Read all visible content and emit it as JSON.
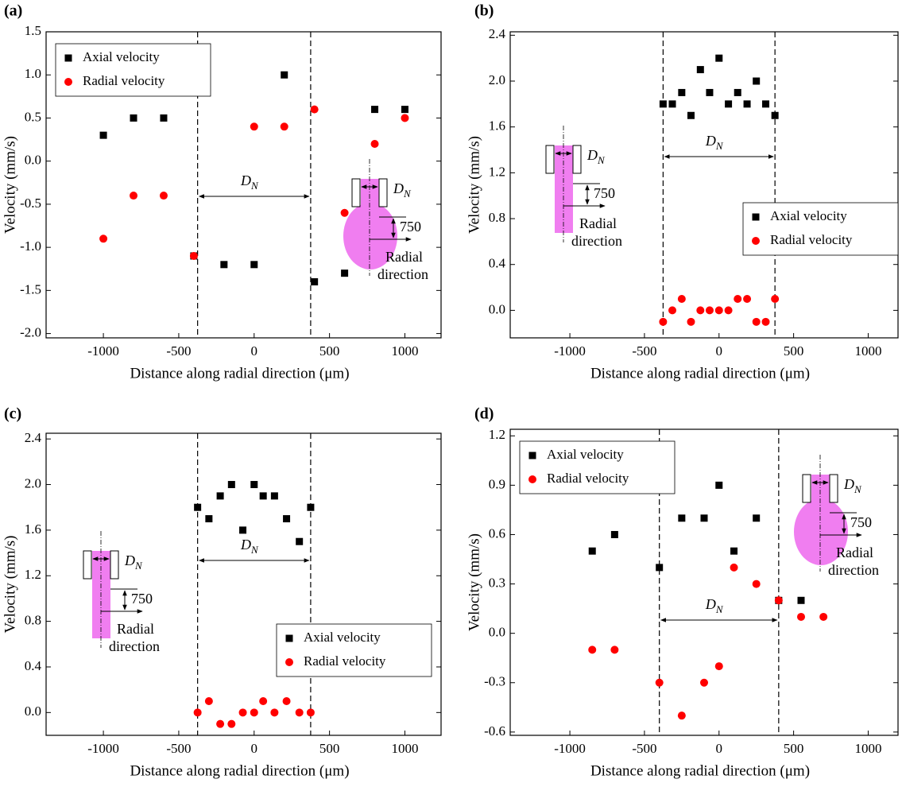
{
  "chart_data": [
    {
      "type": "scatter",
      "panel_label": "(a)",
      "x_label": "Distance along radial direction (μm)",
      "y_label": "Velocity (mm/s)",
      "xlim": [
        -1380,
        1240
      ],
      "xticks": [
        -1000,
        -500,
        0,
        500,
        1000
      ],
      "ylim": [
        -2.05,
        1.5
      ],
      "yticks": [
        1.5,
        {
          "value": 1,
          "label": "1.0"
        },
        0.5,
        {
          "value": 0,
          "label": "0.0"
        },
        -0.5,
        {
          "value": -1,
          "label": "-1.0"
        },
        -1.5,
        {
          "value": -2,
          "label": "-2.0"
        }
      ],
      "legend": "upper left",
      "dashed_lines": [
        -375,
        375
      ],
      "dn_symbol": "D",
      "dn_subscript": "N",
      "inset_size": "750",
      "inset_text": [
        "Radial",
        "direction"
      ],
      "series": [
        {
          "name": "Axial velocity",
          "color": "#000000",
          "marker": "square",
          "x": [
            -1000,
            -800,
            -600,
            -400,
            -200,
            0,
            200,
            400,
            600,
            800,
            1000
          ],
          "values": [
            0.3,
            0.5,
            0.5,
            -1.1,
            -1.2,
            -1.2,
            1.0,
            -1.4,
            -1.3,
            0.6,
            0.6
          ]
        },
        {
          "name": "Radial velocity",
          "color": "#ff0000",
          "marker": "circle",
          "x": [
            -1000,
            -800,
            -600,
            -400,
            0,
            200,
            400,
            600,
            800,
            1000
          ],
          "values": [
            -0.9,
            -0.4,
            -0.4,
            -1.1,
            0.4,
            0.4,
            0.6,
            -0.6,
            0.2,
            0.5
          ]
        }
      ]
    },
    {
      "type": "scatter",
      "panel_label": "(b)",
      "x_label": "Distance along radial direction (μm)",
      "y_label": "Velocity (mm/s)",
      "xlim": [
        -1400,
        1200
      ],
      "xticks": [
        -1000,
        -500,
        0,
        500,
        1000
      ],
      "ylim": [
        -0.24,
        2.43
      ],
      "yticks": [
        {
          "value": 0,
          "label": "0.0"
        },
        0.4,
        0.8,
        1.2,
        1.6,
        {
          "value": 2,
          "label": "2.0"
        },
        2.4
      ],
      "legend": "center right",
      "dashed_lines": [
        -375,
        375
      ],
      "dn_symbol": "D",
      "dn_subscript": "N",
      "inset_size": "750",
      "inset_text": [
        "Radial",
        "direction"
      ],
      "series": [
        {
          "name": "Axial velocity",
          "color": "#000000",
          "marker": "square",
          "x": [
            -375,
            -313,
            -250,
            -188,
            -125,
            -63,
            0,
            63,
            125,
            188,
            250,
            313,
            375
          ],
          "values": [
            1.8,
            1.8,
            1.9,
            1.7,
            2.1,
            1.9,
            2.2,
            1.8,
            1.9,
            1.8,
            2.0,
            1.8,
            1.7
          ]
        },
        {
          "name": "Radial velocity",
          "color": "#ff0000",
          "marker": "circle",
          "x": [
            -375,
            -313,
            -250,
            -188,
            -125,
            -63,
            0,
            63,
            125,
            188,
            250,
            313,
            375
          ],
          "values": [
            -0.1,
            0,
            0.1,
            -0.1,
            0,
            0,
            0,
            0,
            0.1,
            0.1,
            -0.1,
            -0.1,
            0.1
          ]
        }
      ]
    },
    {
      "type": "scatter",
      "panel_label": "(c)",
      "x_label": "Distance along radial direction (μm)",
      "y_label": "Velocity (mm/s)",
      "xlim": [
        -1380,
        1240
      ],
      "xticks": [
        -1000,
        -500,
        0,
        500,
        1000
      ],
      "ylim": [
        -0.2,
        2.45
      ],
      "yticks": [
        {
          "value": 0,
          "label": "0.0"
        },
        0.4,
        0.8,
        1.2,
        1.6,
        {
          "value": 2,
          "label": "2.0"
        },
        2.4
      ],
      "legend": "lower right",
      "dashed_lines": [
        -375,
        375
      ],
      "dn_symbol": "D",
      "dn_subscript": "N",
      "inset_size": "750",
      "inset_text": [
        "Radial",
        "direction"
      ],
      "series": [
        {
          "name": "Axial velocity",
          "color": "#000000",
          "marker": "square",
          "x": [
            -375,
            -300,
            -225,
            -150,
            -75,
            0,
            60,
            135,
            215,
            300,
            375
          ],
          "values": [
            1.8,
            1.7,
            1.9,
            2.0,
            1.6,
            2.0,
            1.9,
            1.9,
            1.7,
            1.5,
            1.8
          ]
        },
        {
          "name": "Radial velocity",
          "color": "#ff0000",
          "marker": "circle",
          "x": [
            -375,
            -300,
            -225,
            -150,
            -75,
            0,
            60,
            135,
            215,
            300,
            375
          ],
          "values": [
            0,
            0.1,
            -0.1,
            -0.1,
            0,
            0,
            0.1,
            0,
            0.1,
            0,
            0
          ]
        }
      ]
    },
    {
      "type": "scatter",
      "panel_label": "(d)",
      "x_label": "Distance along radial direction (μm)",
      "y_label": "Velocity (mm/s)",
      "xlim": [
        -1400,
        1200
      ],
      "xticks": [
        -1000,
        -500,
        0,
        500,
        1000
      ],
      "ylim": [
        -0.62,
        1.24
      ],
      "yticks": [
        -0.6,
        -0.3,
        {
          "value": 0,
          "label": "0.0"
        },
        0.3,
        0.6,
        0.9,
        1.2
      ],
      "legend": "upper left",
      "dashed_lines": [
        -400,
        400
      ],
      "dn_symbol": "D",
      "dn_subscript": "N",
      "inset_size": "750",
      "inset_text": [
        "Radial",
        "direction"
      ],
      "series": [
        {
          "name": "Axial velocity",
          "color": "#000000",
          "marker": "square",
          "x": [
            -850,
            -700,
            -400,
            -250,
            -100,
            0,
            100,
            250,
            400,
            550
          ],
          "values": [
            0.5,
            0.6,
            0.4,
            0.7,
            0.7,
            0.9,
            0.5,
            0.7,
            0.2,
            0.2
          ]
        },
        {
          "name": "Radial velocity",
          "color": "#ff0000",
          "marker": "circle",
          "x": [
            -850,
            -700,
            -400,
            -250,
            -100,
            0,
            100,
            250,
            400,
            550,
            700
          ],
          "values": [
            -0.1,
            -0.1,
            -0.3,
            -0.5,
            -0.3,
            -0.2,
            0.4,
            0.3,
            0.2,
            0.1,
            0.1
          ]
        }
      ]
    }
  ]
}
